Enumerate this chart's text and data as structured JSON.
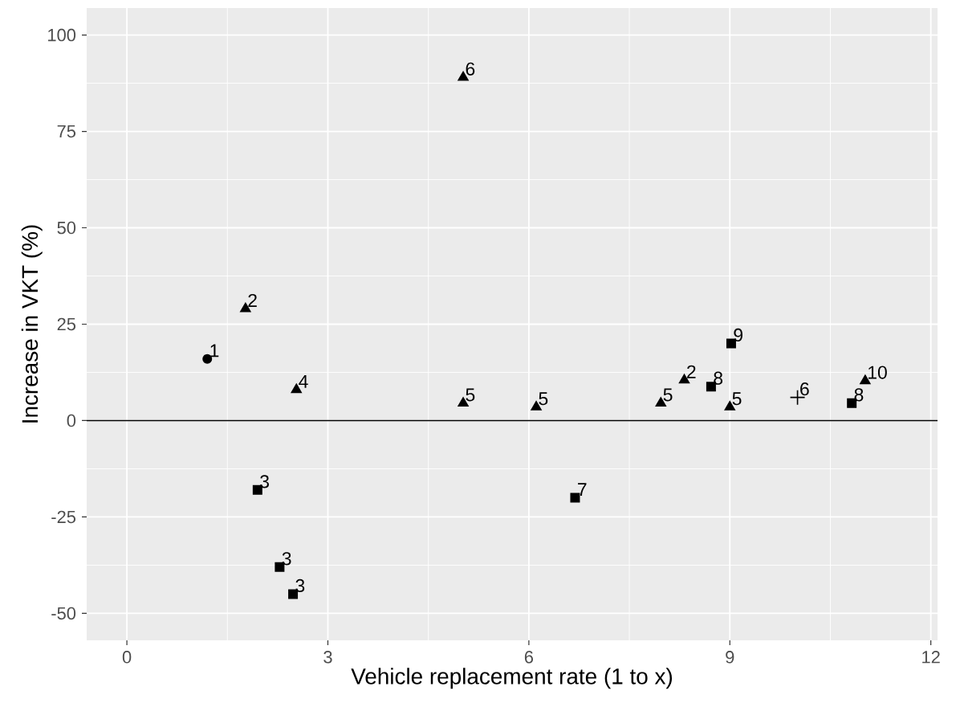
{
  "chart_data": {
    "type": "scatter",
    "xlabel": "Vehicle replacement rate (1 to x)",
    "ylabel": "Increase in VKT (%)",
    "xlim": [
      -0.6,
      12.1
    ],
    "ylim": [
      -57,
      107
    ],
    "xticks": [
      0,
      3,
      6,
      9,
      12
    ],
    "yticks": [
      -50,
      -25,
      0,
      25,
      50,
      75,
      100
    ],
    "grid": true,
    "ref_lines": [
      {
        "axis": "y",
        "value": 0,
        "color": "#000000"
      }
    ],
    "series": [
      {
        "color": "#000000",
        "marker": "circle",
        "x": [
          1.2
        ],
        "values": [
          16
        ]
      },
      {
        "color": "#000000",
        "marker": "triangle",
        "x": [
          1.77,
          2.53,
          5.02,
          5.02,
          6.11,
          7.97,
          8.32,
          9.0,
          11.02
        ],
        "values": [
          29,
          8,
          89,
          4.5,
          3.5,
          4.5,
          10.5,
          3.5,
          10.3
        ]
      },
      {
        "color": "#000000",
        "marker": "square",
        "x": [
          1.95,
          2.28,
          2.48,
          6.69,
          8.72,
          9.02,
          10.82
        ],
        "values": [
          -18,
          -38,
          -45,
          -20,
          8.8,
          20,
          4.5
        ]
      },
      {
        "color": "#000000",
        "marker": "cross",
        "x": [
          10.01
        ],
        "values": [
          6
        ]
      }
    ],
    "annotations": [
      {
        "text": "1",
        "x": 1.2,
        "y": 16
      },
      {
        "text": "2",
        "x": 1.77,
        "y": 29
      },
      {
        "text": "4",
        "x": 2.53,
        "y": 8
      },
      {
        "text": "6",
        "x": 5.02,
        "y": 89
      },
      {
        "text": "5",
        "x": 5.02,
        "y": 4.5
      },
      {
        "text": "5",
        "x": 6.11,
        "y": 3.5
      },
      {
        "text": "5",
        "x": 7.97,
        "y": 4.5
      },
      {
        "text": "2",
        "x": 8.32,
        "y": 10.5
      },
      {
        "text": "5",
        "x": 9.0,
        "y": 3.5
      },
      {
        "text": "10",
        "x": 11.02,
        "y": 10.3
      },
      {
        "text": "3",
        "x": 1.95,
        "y": -18
      },
      {
        "text": "3",
        "x": 2.28,
        "y": -38
      },
      {
        "text": "3",
        "x": 2.48,
        "y": -45
      },
      {
        "text": "7",
        "x": 6.69,
        "y": -20
      },
      {
        "text": "8",
        "x": 8.72,
        "y": 8.8
      },
      {
        "text": "9",
        "x": 9.02,
        "y": 20
      },
      {
        "text": "8",
        "x": 10.82,
        "y": 4.5
      },
      {
        "text": "6",
        "x": 10.01,
        "y": 6
      }
    ]
  }
}
